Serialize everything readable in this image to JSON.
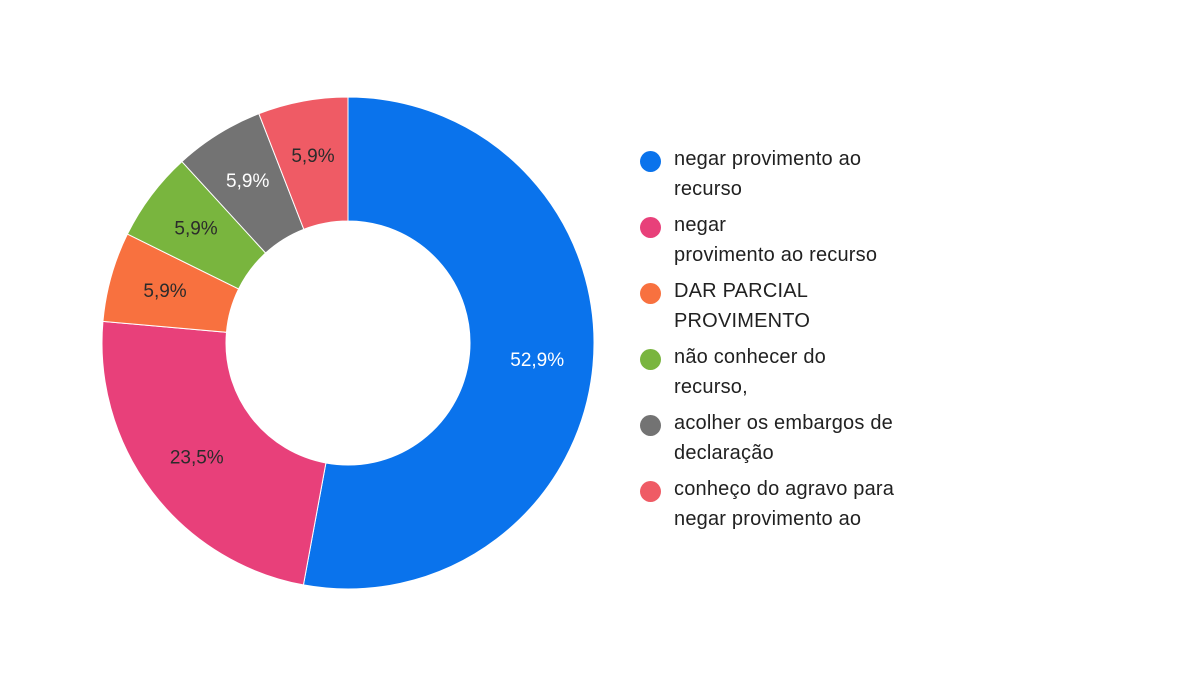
{
  "chart_data": {
    "type": "pie",
    "donut": true,
    "title": "",
    "categories": [
      "negar provimento ao\nrecurso",
      "negar\nprovimento ao recurso",
      "DAR PARCIAL\nPROVIMENTO",
      "não conhecer do\nrecurso,",
      "acolher os embargos de\ndeclaração",
      "conheço do agravo para\nnegar provimento ao"
    ],
    "values": [
      52.9,
      23.5,
      5.9,
      5.9,
      5.9,
      5.9
    ],
    "value_labels": [
      "52,9%",
      "23,5%",
      "5,9%",
      "5,9%",
      "5,9%",
      "5,9%"
    ],
    "colors": [
      "#0a73ec",
      "#e8407a",
      "#f8713f",
      "#79b53e",
      "#737373",
      "#ef5b65"
    ],
    "label_colors": [
      "#ffffff",
      "#2b2b2b",
      "#2b2b2b",
      "#2b2b2b",
      "#ffffff",
      "#2b2b2b"
    ],
    "legend_position": "right"
  }
}
